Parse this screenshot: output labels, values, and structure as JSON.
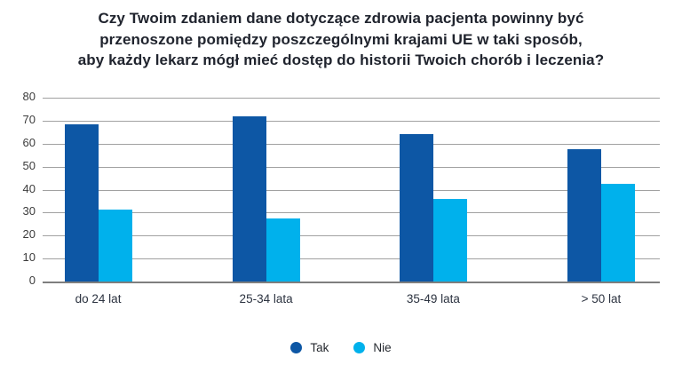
{
  "title": {
    "lines": [
      "Czy Twoim zdaniem dane dotyczące zdrowia pacjenta powinny być",
      "przenoszone pomiędzy poszczególnymi krajami UE w taki sposób,",
      "aby każdy lekarz mógł mieć dostęp do historii Twoich chorób i leczenia?"
    ],
    "text": "Czy Twoim zdaniem dane dotyczące zdrowia pacjenta powinny być przenoszone pomiędzy poszczególnymi krajami UE w taki sposób, aby każdy lekarz mógł mieć dostęp do historii Twoich chorób i leczenia?"
  },
  "chart_data": {
    "type": "bar",
    "title": "Czy Twoim zdaniem dane dotyczące zdrowia pacjenta powinny być przenoszone pomiędzy poszczególnymi krajami UE w taki sposób, aby każdy lekarz mógł mieć dostęp do historii Twoich chorób i leczenia?",
    "categories": [
      "do 24 lat",
      "25-34 lata",
      "35-49 lata",
      "> 50 lat"
    ],
    "series": [
      {
        "name": "Tak",
        "color": "#0d57a5",
        "values": [
          68.5,
          72,
          64,
          57.5
        ]
      },
      {
        "name": "Nie",
        "color": "#00b1ec",
        "values": [
          31.5,
          27.5,
          36,
          42.5
        ]
      }
    ],
    "xlabel": "",
    "ylabel": "",
    "ylim": [
      0,
      80
    ],
    "ytick_step": 10,
    "y_ticks": [
      0,
      10,
      20,
      30,
      40,
      50,
      60,
      70,
      80
    ],
    "grid": true,
    "legend_position": "bottom"
  },
  "colors": {
    "background": "#ffffff",
    "title_text": "#20242e",
    "gridline": "#a1a1a1",
    "baseline": "#7e7e7e",
    "axis_text": "#3c3c3c",
    "tak": "#0d57a5",
    "nie": "#00b1ec"
  }
}
